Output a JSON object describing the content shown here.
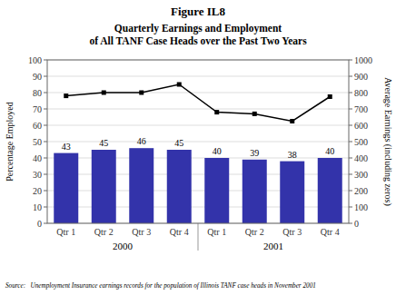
{
  "chart_data": {
    "type": "bar",
    "title": "Figure IL8",
    "subtitle": [
      "Quarterly Earnings and Employment",
      "of All TANF Case Heads over the Past Two Years"
    ],
    "source": "Source:   Unemployment Insurance earnings records for the population of Illinois TANF case heads in November 2001",
    "categories": [
      "Qtr 1",
      "Qtr 2",
      "Qtr 3",
      "Qtr 4",
      "Qtr 1",
      "Qtr 2",
      "Qtr 3",
      "Qtr 4"
    ],
    "group_labels": [
      "2000",
      "2001"
    ],
    "y_label": "Percentage Employed",
    "y2_label": "Average Earnings (including zeros)",
    "ylim": [
      0,
      100
    ],
    "yticks": [
      0,
      10,
      20,
      30,
      40,
      50,
      60,
      70,
      80,
      90,
      100
    ],
    "y2lim": [
      0,
      1000
    ],
    "y2ticks": [
      0,
      100,
      200,
      300,
      400,
      500,
      600,
      700,
      800,
      900,
      1000
    ],
    "grid": true,
    "series": [
      {
        "type": "bar",
        "color": "#3333aa",
        "data_labels": true,
        "values": [
          43,
          45,
          46,
          45,
          40,
          39,
          38,
          40
        ]
      },
      {
        "type": "line",
        "axis": "y2",
        "color": "#000000",
        "marker": "square",
        "values": [
          780,
          800,
          800,
          850,
          680,
          670,
          625,
          775
        ]
      }
    ]
  }
}
